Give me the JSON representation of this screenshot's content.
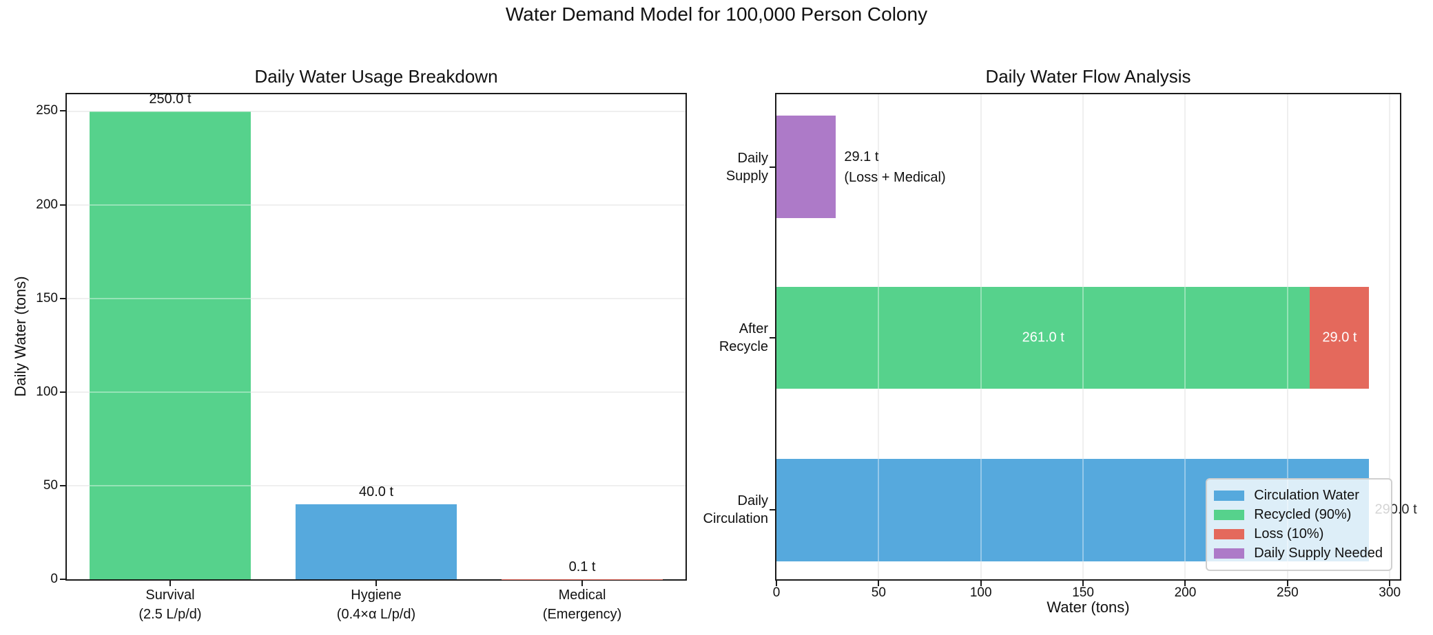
{
  "figure_title": "Water Demand Model for 100,000 Person Colony",
  "palette": {
    "blue": "#56a9dd",
    "green": "#56d28c",
    "red": "#e4695c",
    "purple": "#ad7ac8",
    "grid": "#e6e6e6",
    "spine": "#1a1a1a",
    "text": "#111111"
  },
  "chart_data": [
    {
      "type": "bar",
      "title": "Daily Water Usage Breakdown",
      "ylabel": "Daily Water (tons)",
      "ylim": [
        0,
        259
      ],
      "yticks": [
        0,
        50,
        100,
        150,
        200,
        250
      ],
      "grid": "y",
      "categories": [
        "Survival\n(2.5 L/p/d)",
        "Hygiene\n(0.4×α L/p/d)",
        "Medical\n(Emergency)"
      ],
      "values": [
        250.0,
        40.0,
        0.1
      ],
      "bar_labels": [
        "250.0 t",
        "40.0 t",
        "0.1 t"
      ],
      "bar_colors": [
        "green",
        "blue",
        "red"
      ]
    },
    {
      "type": "barh",
      "title": "Daily Water Flow Analysis",
      "xlabel": "Water (tons)",
      "xlim": [
        0,
        305
      ],
      "xticks": [
        0,
        50,
        100,
        150,
        200,
        250,
        300
      ],
      "grid": "x",
      "rows": [
        {
          "label": "Daily\nSupply",
          "segments": [
            {
              "series": "Daily Supply Needed",
              "color": "purple",
              "start": 0,
              "value": 29.1
            }
          ],
          "annotation": "29.1 t\n(Loss + Medical)"
        },
        {
          "label": "After\nRecycle",
          "segments": [
            {
              "series": "Recycled (90%)",
              "color": "green",
              "start": 0,
              "value": 261.0,
              "label": "261.0 t"
            },
            {
              "series": "Loss (10%)",
              "color": "red",
              "start": 261.0,
              "value": 29.0,
              "label": "29.0 t"
            }
          ]
        },
        {
          "label": "Daily\nCirculation",
          "segments": [
            {
              "series": "Circulation Water",
              "color": "blue",
              "start": 0,
              "value": 290.0
            }
          ],
          "end_label": "290.0 t"
        }
      ],
      "legend": [
        {
          "label": "Circulation Water",
          "color": "blue"
        },
        {
          "label": "Recycled (90%)",
          "color": "green"
        },
        {
          "label": "Loss (10%)",
          "color": "red"
        },
        {
          "label": "Daily Supply Needed",
          "color": "purple"
        }
      ],
      "legend_position": "lower right"
    }
  ]
}
